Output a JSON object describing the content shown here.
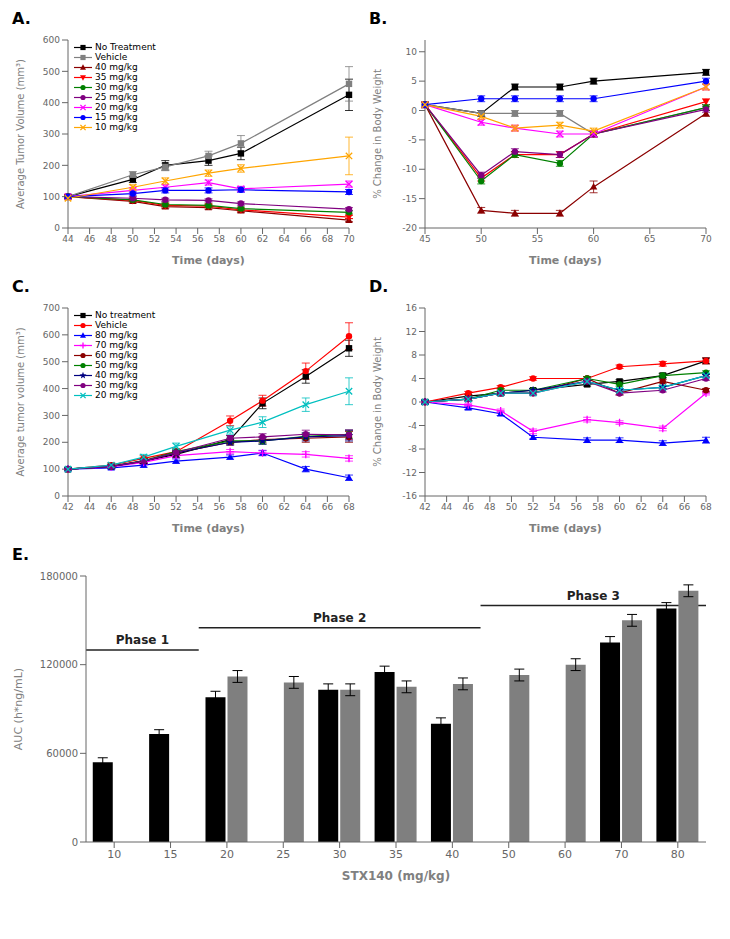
{
  "chart_data": [
    {
      "type": "line",
      "title": "A.",
      "x_label": "Time (days)",
      "y_label": "Average Tumor Volume (mm³)",
      "x": [
        44,
        50,
        53,
        57,
        60,
        70
      ],
      "xlim": [
        44,
        70
      ],
      "xticks": [
        44,
        46,
        48,
        50,
        52,
        54,
        56,
        58,
        60,
        62,
        64,
        66,
        68,
        70
      ],
      "ylim": [
        0,
        600
      ],
      "yticks": [
        0,
        100,
        200,
        300,
        400,
        500,
        600
      ],
      "grid": false,
      "legend": "upper left",
      "series": [
        {
          "name": "No Treatment",
          "color": "#000000",
          "marker": "square",
          "values": [
            100,
            155,
            200,
            215,
            238,
            425
          ],
          "errors": [
            5,
            10,
            15,
            15,
            20,
            50
          ]
        },
        {
          "name": "Vehicle",
          "color": "#808080",
          "marker": "square",
          "values": [
            100,
            170,
            195,
            230,
            270,
            460
          ],
          "errors": [
            5,
            10,
            12,
            15,
            25,
            55
          ]
        },
        {
          "name": "40 mg/kg",
          "color": "#8B0000",
          "marker": "triangle-up",
          "values": [
            100,
            85,
            68,
            65,
            55,
            25
          ],
          "errors": [
            5,
            5,
            5,
            5,
            5,
            5
          ]
        },
        {
          "name": "35 mg/kg",
          "color": "#FF0000",
          "marker": "triangle-down",
          "values": [
            100,
            88,
            72,
            70,
            58,
            35
          ],
          "errors": [
            5,
            5,
            5,
            5,
            5,
            5
          ]
        },
        {
          "name": "30 mg/kg",
          "color": "#008000",
          "marker": "circle",
          "values": [
            100,
            90,
            75,
            72,
            62,
            50
          ],
          "errors": [
            5,
            5,
            5,
            5,
            5,
            5
          ]
        },
        {
          "name": "25 mg/kg",
          "color": "#800080",
          "marker": "circle",
          "values": [
            100,
            95,
            90,
            88,
            78,
            60
          ],
          "errors": [
            5,
            5,
            5,
            5,
            5,
            5
          ]
        },
        {
          "name": "20 mg/kg",
          "color": "#FF00FF",
          "marker": "x",
          "values": [
            100,
            120,
            130,
            145,
            125,
            140
          ],
          "errors": [
            5,
            8,
            8,
            8,
            8,
            10
          ]
        },
        {
          "name": "15 mg/kg",
          "color": "#0000FF",
          "marker": "circle",
          "values": [
            100,
            110,
            120,
            120,
            122,
            115
          ],
          "errors": [
            5,
            5,
            8,
            8,
            8,
            8
          ]
        },
        {
          "name": "10 mg/kg",
          "color": "#FFA500",
          "marker": "x",
          "values": [
            95,
            130,
            150,
            175,
            190,
            230
          ],
          "errors": [
            5,
            8,
            10,
            10,
            12,
            60
          ]
        }
      ]
    },
    {
      "type": "line",
      "title": "B.",
      "x_label": "Time (days)",
      "y_label": "% Change in Body Weight",
      "x": [
        45,
        50,
        53,
        57,
        60,
        70
      ],
      "xlim": [
        45,
        70
      ],
      "xticks": [
        45,
        50,
        55,
        60,
        65,
        70
      ],
      "ylim": [
        -20,
        12
      ],
      "yticks": [
        -20,
        -15,
        -10,
        -5,
        0,
        5,
        10
      ],
      "grid": false,
      "series": [
        {
          "color": "#000000",
          "marker": "square",
          "values": [
            1,
            -0.5,
            4,
            4,
            5,
            6.5
          ],
          "errors": [
            0.5,
            0.5,
            0.5,
            0.5,
            0.5,
            0.5
          ]
        },
        {
          "color": "#808080",
          "marker": "square",
          "values": [
            1,
            -0.5,
            -0.5,
            -0.5,
            -4,
            0.5
          ],
          "errors": [
            0.5,
            0.5,
            0.5,
            0.5,
            0.5,
            0.5
          ]
        },
        {
          "color": "#8B0000",
          "marker": "triangle-up",
          "values": [
            1,
            -17,
            -17.5,
            -17.5,
            -13,
            -0.5
          ],
          "errors": [
            0.5,
            0.5,
            0.5,
            0.5,
            1.0,
            0.5
          ]
        },
        {
          "color": "#FF0000",
          "marker": "triangle-down",
          "values": [
            1,
            -11.5,
            -7.5,
            -7.5,
            -4,
            1.5
          ],
          "errors": [
            0.5,
            0.5,
            0.5,
            0.5,
            0.5,
            0.5
          ]
        },
        {
          "color": "#008000",
          "marker": "circle",
          "values": [
            1,
            -12,
            -7.5,
            -9,
            -4,
            0.5
          ],
          "errors": [
            0.5,
            0.5,
            0.5,
            0.5,
            0.5,
            0.5
          ]
        },
        {
          "color": "#800080",
          "marker": "circle",
          "values": [
            1,
            -11,
            -7,
            -7.5,
            -4,
            0.2
          ],
          "errors": [
            0.5,
            0.5,
            0.5,
            0.5,
            0.5,
            0.5
          ]
        },
        {
          "color": "#FF00FF",
          "marker": "x",
          "values": [
            1,
            -2,
            -3,
            -4,
            -4,
            4
          ],
          "errors": [
            0.5,
            0.5,
            0.5,
            0.5,
            0.5,
            0.5
          ]
        },
        {
          "color": "#0000FF",
          "marker": "circle",
          "values": [
            1,
            2,
            2,
            2,
            2,
            5
          ],
          "errors": [
            0.5,
            0.5,
            0.5,
            0.5,
            0.5,
            0.5
          ]
        },
        {
          "color": "#FFA500",
          "marker": "x",
          "values": [
            1,
            -1,
            -3,
            -2.5,
            -3.5,
            4
          ],
          "errors": [
            0.5,
            0.5,
            0.5,
            0.5,
            0.5,
            0.5
          ]
        }
      ]
    },
    {
      "type": "line",
      "title": "C.",
      "x_label": "Time (days)",
      "y_label": "Average tumor volume (mm³)",
      "x": [
        42,
        46,
        49,
        52,
        57,
        60,
        64,
        68
      ],
      "xlim": [
        42,
        68
      ],
      "xticks": [
        42,
        44,
        46,
        48,
        50,
        52,
        54,
        56,
        58,
        60,
        62,
        64,
        66,
        68
      ],
      "ylim": [
        0,
        700
      ],
      "yticks": [
        0,
        100,
        200,
        300,
        400,
        500,
        600,
        700
      ],
      "grid": false,
      "legend": "upper left",
      "series": [
        {
          "name": "No treatment",
          "color": "#000000",
          "marker": "square",
          "values": [
            100,
            110,
            130,
            155,
            210,
            345,
            445,
            550
          ],
          "errors": [
            5,
            8,
            10,
            12,
            15,
            20,
            25,
            30
          ]
        },
        {
          "name": "Vehicle",
          "color": "#FF0000",
          "marker": "circle",
          "values": [
            100,
            115,
            140,
            165,
            280,
            355,
            465,
            595
          ],
          "errors": [
            5,
            8,
            10,
            12,
            18,
            20,
            30,
            50
          ]
        },
        {
          "name": "80 mg/kg",
          "color": "#0000FF",
          "marker": "triangle-up",
          "values": [
            100,
            105,
            115,
            130,
            145,
            160,
            100,
            68
          ],
          "errors": [
            5,
            5,
            8,
            8,
            8,
            10,
            10,
            10
          ]
        },
        {
          "name": "70 mg/kg",
          "color": "#FF00FF",
          "marker": "plus",
          "values": [
            100,
            108,
            125,
            150,
            165,
            160,
            155,
            140
          ],
          "errors": [
            5,
            5,
            8,
            8,
            8,
            8,
            10,
            10
          ]
        },
        {
          "name": "60 mg/kg",
          "color": "#8B0000",
          "marker": "circle",
          "values": [
            100,
            110,
            130,
            160,
            200,
            210,
            215,
            220
          ],
          "errors": [
            5,
            5,
            8,
            8,
            10,
            12,
            15,
            20
          ]
        },
        {
          "name": "50 mg/kg",
          "color": "#008000",
          "marker": "circle",
          "values": [
            100,
            110,
            132,
            165,
            205,
            205,
            222,
            230
          ],
          "errors": [
            5,
            5,
            8,
            8,
            10,
            12,
            12,
            15
          ]
        },
        {
          "name": "40 mg/kg",
          "color": "#000080",
          "marker": "star",
          "values": [
            100,
            110,
            130,
            160,
            200,
            205,
            220,
            225
          ],
          "errors": [
            5,
            5,
            8,
            8,
            10,
            12,
            15,
            20
          ]
        },
        {
          "name": "30 mg/kg",
          "color": "#800080",
          "marker": "circle",
          "values": [
            100,
            110,
            130,
            162,
            215,
            220,
            230,
            228
          ],
          "errors": [
            5,
            5,
            8,
            8,
            10,
            12,
            15,
            18
          ]
        },
        {
          "name": "20 mg/kg",
          "color": "#00BFBF",
          "marker": "x",
          "values": [
            100,
            115,
            145,
            185,
            245,
            275,
            340,
            390
          ],
          "errors": [
            5,
            8,
            10,
            12,
            15,
            20,
            25,
            50
          ]
        }
      ]
    },
    {
      "type": "line",
      "title": "D.",
      "x_label": "Time (days)",
      "y_label": "% Change in Body Weight",
      "x": [
        42,
        46,
        49,
        52,
        57,
        60,
        64,
        68
      ],
      "xlim": [
        42,
        68
      ],
      "xticks": [
        42,
        44,
        46,
        48,
        50,
        52,
        54,
        56,
        58,
        60,
        62,
        64,
        66,
        68
      ],
      "ylim": [
        -16,
        16
      ],
      "yticks": [
        -16,
        -12,
        -8,
        -4,
        0,
        4,
        8,
        12,
        16
      ],
      "grid": false,
      "series": [
        {
          "color": "#000000",
          "marker": "square",
          "values": [
            0,
            1,
            1.5,
            2,
            3,
            3.5,
            4.5,
            7
          ],
          "errors": [
            0.3,
            0.3,
            0.3,
            0.3,
            0.3,
            0.3,
            0.4,
            0.5
          ]
        },
        {
          "color": "#FF0000",
          "marker": "circle",
          "values": [
            0,
            1.5,
            2.5,
            4,
            4,
            6,
            6.5,
            7
          ],
          "errors": [
            0.3,
            0.3,
            0.3,
            0.3,
            0.3,
            0.3,
            0.4,
            0.5
          ]
        },
        {
          "color": "#0000FF",
          "marker": "triangle-up",
          "values": [
            0,
            -1,
            -2,
            -6,
            -6.5,
            -6.5,
            -7,
            -6.5
          ],
          "errors": [
            0.3,
            0.3,
            0.3,
            0.3,
            0.4,
            0.4,
            0.4,
            0.5
          ]
        },
        {
          "color": "#FF00FF",
          "marker": "plus",
          "values": [
            0,
            -0.5,
            -1.5,
            -5,
            -3,
            -3.5,
            -4.5,
            1.5
          ],
          "errors": [
            0.3,
            0.3,
            0.3,
            0.4,
            0.4,
            0.3,
            0.4,
            0.3
          ]
        },
        {
          "color": "#8B0000",
          "marker": "circle",
          "values": [
            0,
            0.5,
            1.5,
            1.5,
            4,
            1.5,
            3.5,
            2
          ],
          "errors": [
            0.3,
            0.3,
            0.3,
            0.3,
            0.3,
            0.3,
            0.3,
            0.3
          ]
        },
        {
          "color": "#008000",
          "marker": "circle",
          "values": [
            0,
            0.5,
            2,
            2,
            4,
            3,
            4.5,
            5
          ],
          "errors": [
            0.3,
            0.3,
            0.3,
            0.3,
            0.3,
            0.3,
            0.3,
            0.3
          ]
        },
        {
          "color": "#000080",
          "marker": "star",
          "values": [
            0,
            0.5,
            1.5,
            2,
            3.5,
            2,
            2.5,
            4.5
          ],
          "errors": [
            0.3,
            0.3,
            0.3,
            0.3,
            0.3,
            0.3,
            0.3,
            0.3
          ]
        },
        {
          "color": "#800080",
          "marker": "circle",
          "values": [
            0,
            0.5,
            1.5,
            1.5,
            3.5,
            1.5,
            2,
            4
          ],
          "errors": [
            0.3,
            0.3,
            0.3,
            0.3,
            0.3,
            0.3,
            0.3,
            0.3
          ]
        },
        {
          "color": "#00BFBF",
          "marker": "x",
          "values": [
            0,
            0.5,
            1.5,
            1.5,
            3.5,
            2,
            2.5,
            4.5
          ],
          "errors": [
            0.3,
            0.3,
            0.3,
            0.3,
            0.3,
            0.3,
            0.3,
            0.3
          ]
        }
      ]
    },
    {
      "type": "bar",
      "title": "E.",
      "x_label": "STX140 (mg/kg)",
      "y_label": "AUC (h*ng/mL)",
      "categories": [
        10,
        15,
        20,
        25,
        30,
        35,
        40,
        50,
        60,
        70,
        80
      ],
      "ylim": [
        0,
        180000
      ],
      "yticks": [
        0,
        60000,
        120000,
        180000
      ],
      "grid": false,
      "series": [
        {
          "color": "#000000",
          "values": [
            54000,
            73000,
            98000,
            0,
            103000,
            115000,
            80000,
            0,
            0,
            135000,
            158000
          ],
          "errors": [
            3000,
            3000,
            4000,
            0,
            4000,
            4000,
            4000,
            0,
            0,
            4000,
            4000
          ]
        },
        {
          "color": "#7f7f7f",
          "values": [
            0,
            0,
            112000,
            108000,
            103000,
            105000,
            107000,
            113000,
            120000,
            150000,
            170000
          ],
          "errors": [
            0,
            0,
            4000,
            4000,
            4000,
            4000,
            4000,
            4000,
            4000,
            4000,
            4000
          ]
        }
      ],
      "annotations": [
        {
          "text": "Phase 1",
          "x_start": 10,
          "x_end": 15,
          "y": 130000
        },
        {
          "text": "Phase 2",
          "x_start": 20,
          "x_end": 40,
          "y": 145000
        },
        {
          "text": "Phase 3",
          "x_start": 50,
          "x_end": 80,
          "y": 160000
        }
      ]
    }
  ]
}
